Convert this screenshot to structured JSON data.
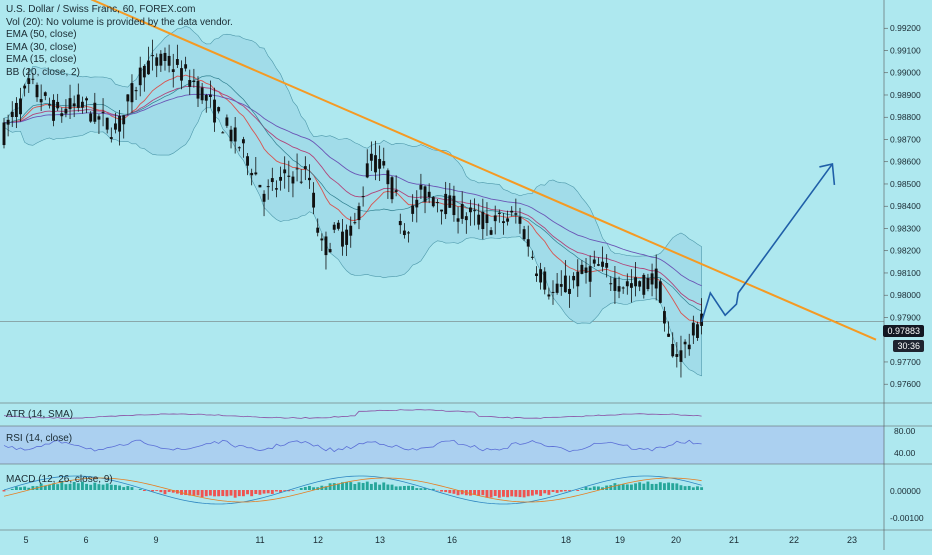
{
  "header": {
    "title": "U.S. Dollar / Swiss Franc, 60, FOREX.com",
    "volume_note": "Vol (20): No volume is provided by the data vendor.",
    "indicators": [
      "EMA (50, close)",
      "EMA (30, close)",
      "EMA (15, close)",
      "BB (20, close, 2)"
    ]
  },
  "panes": {
    "atr_label": "ATR (14, SMA)",
    "rsi_label": "RSI (14, close)",
    "macd_label": "MACD (12, 26, close, 9)"
  },
  "price_tags": {
    "last": "0.97883",
    "countdown": "30:36"
  },
  "colors": {
    "background": "#aee8ef",
    "candle": "#111111",
    "trendline": "#f59a23",
    "projection": "#1f5fa8",
    "bb_fill": "#9fdbe8",
    "rsi_band": "#a9c8f0",
    "macd_pos": "#26a69a",
    "macd_neg": "#ef5350"
  },
  "chart_data": {
    "type": "line",
    "title": "U.S. Dollar / Swiss Franc, 60, FOREX.com",
    "x_tick_labels": [
      "5",
      "6",
      "9",
      "11",
      "12",
      "13",
      "16",
      "18",
      "19",
      "20",
      "21",
      "22",
      "23"
    ],
    "y_tick_labels": [
      "0.99200",
      "0.99100",
      "0.99000",
      "0.98900",
      "0.98800",
      "0.98700",
      "0.98600",
      "0.98500",
      "0.98400",
      "0.98300",
      "0.98200",
      "0.98100",
      "0.98000",
      "0.97900",
      "0.97700",
      "0.97600"
    ],
    "ylim": [
      0.9752,
      0.993
    ],
    "x_index_range": [
      0,
      100
    ],
    "price_path": [
      {
        "x": 0,
        "y": 0.9873
      },
      {
        "x": 3,
        "y": 0.9894
      },
      {
        "x": 6,
        "y": 0.9882
      },
      {
        "x": 9,
        "y": 0.9886
      },
      {
        "x": 11,
        "y": 0.9879
      },
      {
        "x": 13,
        "y": 0.9874
      },
      {
        "x": 16,
        "y": 0.9903
      },
      {
        "x": 19,
        "y": 0.9905
      },
      {
        "x": 22,
        "y": 0.9895
      },
      {
        "x": 25,
        "y": 0.9878
      },
      {
        "x": 28,
        "y": 0.9862
      },
      {
        "x": 30,
        "y": 0.9845
      },
      {
        "x": 33,
        "y": 0.9855
      },
      {
        "x": 35,
        "y": 0.9853
      },
      {
        "x": 36.5,
        "y": 0.982
      },
      {
        "x": 38,
        "y": 0.9828
      },
      {
        "x": 40,
        "y": 0.9826
      },
      {
        "x": 42,
        "y": 0.9862
      },
      {
        "x": 44,
        "y": 0.9854
      },
      {
        "x": 46,
        "y": 0.983
      },
      {
        "x": 48,
        "y": 0.9846
      },
      {
        "x": 50,
        "y": 0.9843
      },
      {
        "x": 53,
        "y": 0.9836
      },
      {
        "x": 56,
        "y": 0.9832
      },
      {
        "x": 59,
        "y": 0.9836
      },
      {
        "x": 61,
        "y": 0.9814
      },
      {
        "x": 63,
        "y": 0.98
      },
      {
        "x": 66,
        "y": 0.9808
      },
      {
        "x": 68,
        "y": 0.9813
      },
      {
        "x": 70,
        "y": 0.9807
      },
      {
        "x": 72,
        "y": 0.9804
      },
      {
        "x": 74,
        "y": 0.9806
      },
      {
        "x": 75,
        "y": 0.9809
      },
      {
        "x": 76,
        "y": 0.978
      },
      {
        "x": 77.5,
        "y": 0.9773
      },
      {
        "x": 80,
        "y": 0.9788
      }
    ],
    "trendline": [
      {
        "x": 10,
        "y": 0.9933
      },
      {
        "x": 100,
        "y": 0.978
      }
    ],
    "projection_path": [
      {
        "x": 80,
        "y": 0.9788
      },
      {
        "x": 81,
        "y": 0.9801
      },
      {
        "x": 82.7,
        "y": 0.9791
      },
      {
        "x": 84,
        "y": 0.9796
      },
      {
        "x": 84.2,
        "y": 0.9801
      },
      {
        "x": 95,
        "y": 0.9859
      }
    ],
    "rsi_axis": [
      "80.00",
      "40.00"
    ],
    "macd_axis": [
      "0.00000",
      "-0.00100"
    ]
  }
}
